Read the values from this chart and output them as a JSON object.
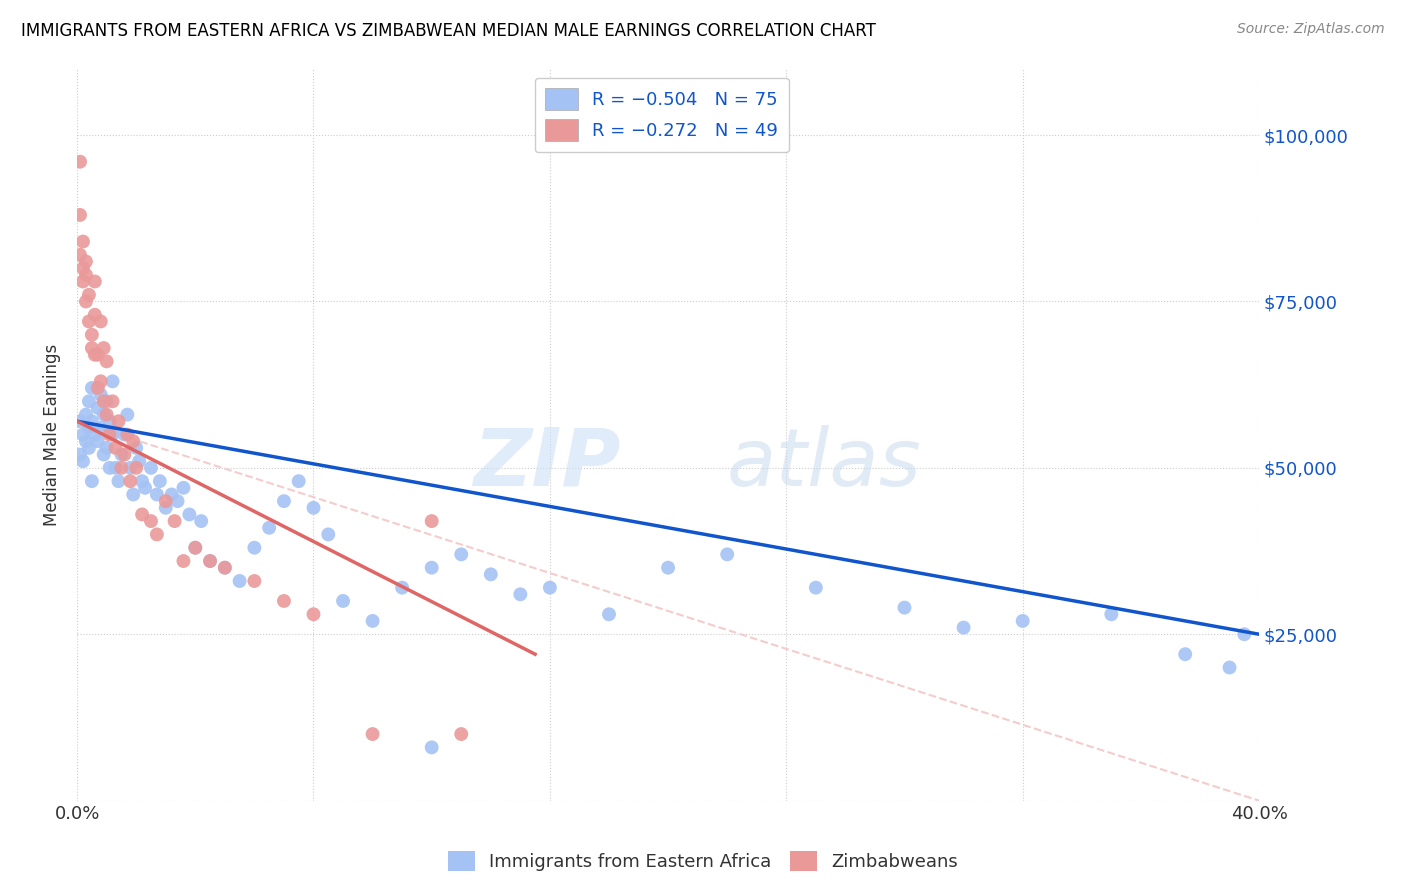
{
  "title": "IMMIGRANTS FROM EASTERN AFRICA VS ZIMBABWEAN MEDIAN MALE EARNINGS CORRELATION CHART",
  "source": "Source: ZipAtlas.com",
  "ylabel": "Median Male Earnings",
  "xlim": [
    0.0,
    0.4
  ],
  "ylim": [
    0,
    110000
  ],
  "yticks": [
    0,
    25000,
    50000,
    75000,
    100000
  ],
  "ytick_labels": [
    "",
    "$25,000",
    "$50,000",
    "$75,000",
    "$100,000"
  ],
  "xticks": [
    0.0,
    0.08,
    0.16,
    0.24,
    0.32,
    0.4
  ],
  "xtick_labels": [
    "0.0%",
    "",
    "",
    "",
    "",
    "40.0%"
  ],
  "legend_xlabel": "Immigrants from Eastern Africa",
  "legend_zlabel": "Zimbabweans",
  "blue_color": "#a4c2f4",
  "pink_color": "#ea9999",
  "line_blue": "#1155cc",
  "line_pink": "#e06666",
  "line_dashed_color": "#f4cccc",
  "background_color": "#ffffff",
  "grid_color": "#cccccc",
  "right_ytick_color": "#1155cc",
  "blue_line_x0": 0.0,
  "blue_line_y0": 57000,
  "blue_line_x1": 0.4,
  "blue_line_y1": 25000,
  "pink_line_x0": 0.0,
  "pink_line_y0": 57000,
  "pink_line_x1": 0.155,
  "pink_line_y1": 22000,
  "dash_line_x0": 0.0,
  "dash_line_y0": 57000,
  "dash_line_x1": 0.4,
  "dash_line_y1": 0,
  "blue_x": [
    0.001,
    0.001,
    0.002,
    0.002,
    0.003,
    0.003,
    0.004,
    0.004,
    0.004,
    0.005,
    0.005,
    0.005,
    0.006,
    0.007,
    0.007,
    0.008,
    0.008,
    0.009,
    0.009,
    0.01,
    0.01,
    0.011,
    0.011,
    0.012,
    0.012,
    0.013,
    0.014,
    0.015,
    0.016,
    0.017,
    0.018,
    0.019,
    0.02,
    0.021,
    0.022,
    0.023,
    0.025,
    0.027,
    0.028,
    0.03,
    0.032,
    0.034,
    0.036,
    0.038,
    0.04,
    0.042,
    0.045,
    0.05,
    0.055,
    0.06,
    0.065,
    0.07,
    0.075,
    0.08,
    0.085,
    0.09,
    0.1,
    0.11,
    0.12,
    0.13,
    0.14,
    0.15,
    0.16,
    0.18,
    0.2,
    0.22,
    0.25,
    0.28,
    0.3,
    0.32,
    0.35,
    0.375,
    0.395,
    0.12,
    0.39
  ],
  "blue_y": [
    57000,
    52000,
    55000,
    51000,
    58000,
    54000,
    56000,
    53000,
    60000,
    62000,
    48000,
    57000,
    55000,
    59000,
    54000,
    61000,
    56000,
    52000,
    58000,
    60000,
    53000,
    57000,
    50000,
    63000,
    55000,
    50000,
    48000,
    52000,
    55000,
    58000,
    50000,
    46000,
    53000,
    51000,
    48000,
    47000,
    50000,
    46000,
    48000,
    44000,
    46000,
    45000,
    47000,
    43000,
    38000,
    42000,
    36000,
    35000,
    33000,
    38000,
    41000,
    45000,
    48000,
    44000,
    40000,
    30000,
    27000,
    32000,
    35000,
    37000,
    34000,
    31000,
    32000,
    28000,
    35000,
    37000,
    32000,
    29000,
    26000,
    27000,
    28000,
    22000,
    25000,
    8000,
    20000
  ],
  "pink_x": [
    0.001,
    0.001,
    0.001,
    0.002,
    0.002,
    0.002,
    0.003,
    0.003,
    0.003,
    0.004,
    0.004,
    0.005,
    0.005,
    0.006,
    0.006,
    0.006,
    0.007,
    0.007,
    0.008,
    0.008,
    0.009,
    0.009,
    0.01,
    0.01,
    0.011,
    0.012,
    0.013,
    0.014,
    0.015,
    0.016,
    0.017,
    0.018,
    0.019,
    0.02,
    0.022,
    0.025,
    0.027,
    0.03,
    0.033,
    0.036,
    0.04,
    0.045,
    0.05,
    0.06,
    0.07,
    0.08,
    0.1,
    0.12,
    0.13
  ],
  "pink_y": [
    96000,
    88000,
    82000,
    80000,
    78000,
    84000,
    79000,
    75000,
    81000,
    76000,
    72000,
    70000,
    68000,
    73000,
    67000,
    78000,
    67000,
    62000,
    72000,
    63000,
    68000,
    60000,
    58000,
    66000,
    55000,
    60000,
    53000,
    57000,
    50000,
    52000,
    55000,
    48000,
    54000,
    50000,
    43000,
    42000,
    40000,
    45000,
    42000,
    36000,
    38000,
    36000,
    35000,
    33000,
    30000,
    28000,
    10000,
    42000,
    10000
  ]
}
